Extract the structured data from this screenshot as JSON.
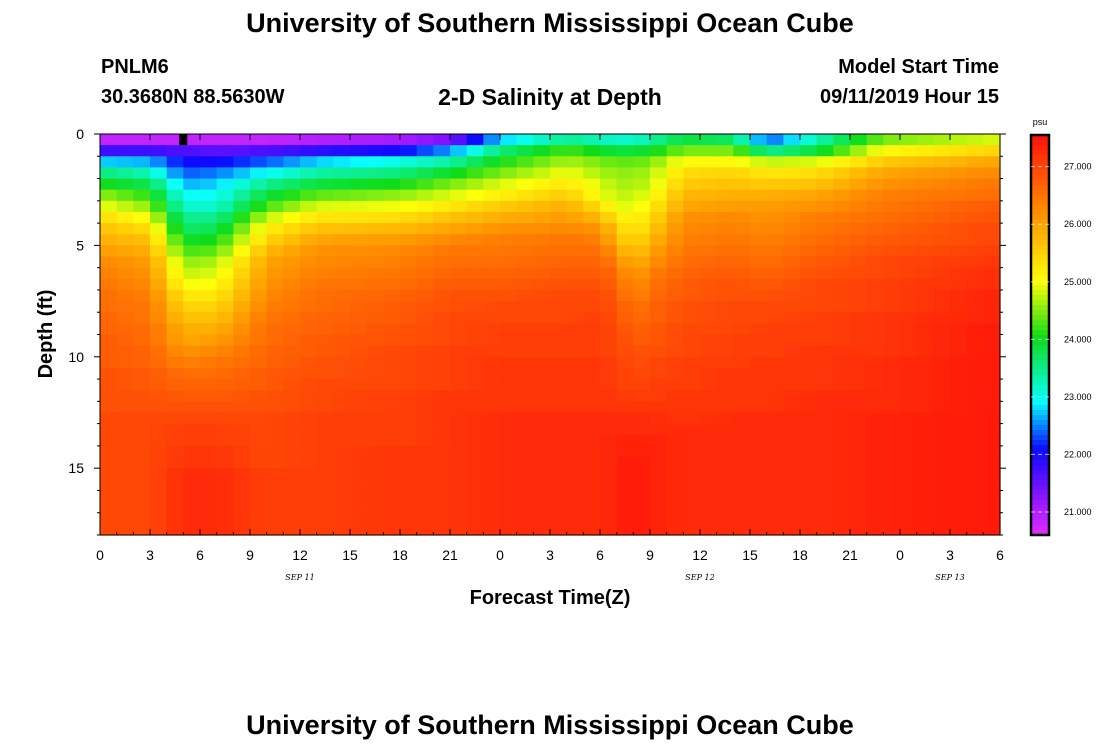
{
  "header": {
    "title_top": "University of Southern Mississippi Ocean Cube",
    "station_id": "PNLM6",
    "station_coords": "30.3680N 88.5630W",
    "plot_title": "2-D Salinity at Depth",
    "model_start_label": "Model Start Time",
    "model_start_value": "09/11/2019 Hour 15",
    "title_bottom": "University of Southern Mississippi Ocean Cube"
  },
  "chart_data": {
    "type": "heatmap",
    "title": "2-D Salinity at Depth",
    "xlabel": "Forecast Time(Z)",
    "ylabel": "Depth (ft)",
    "x_hours_from_sep11_00z": [
      0,
      54
    ],
    "x_tick_labels": [
      "0",
      "3",
      "6",
      "9",
      "12",
      "15",
      "18",
      "21",
      "0",
      "3",
      "6",
      "9",
      "12",
      "15",
      "18",
      "21",
      "0",
      "3",
      "6"
    ],
    "date_labels": [
      {
        "label": "SEP 11",
        "hour": 12
      },
      {
        "label": "SEP 12",
        "hour": 36
      },
      {
        "label": "SEP 13",
        "hour": 51
      }
    ],
    "ylim": [
      0,
      18
    ],
    "y_ticks": [
      0,
      5,
      10,
      15
    ],
    "y_tick_labels": [
      "0",
      "5",
      "10",
      "15"
    ],
    "depth_levels_ft": [
      0.25,
      0.75,
      1.25,
      1.75,
      2.25,
      2.75,
      3.25,
      3.75,
      4.25,
      4.75,
      5.25,
      5.75,
      6.25,
      6.75,
      7.25,
      7.75,
      8.25,
      8.75,
      9.25,
      9.75,
      10.25,
      10.75,
      11.25,
      11.75,
      12.25,
      12.75,
      13.25,
      13.75,
      14.25,
      14.75,
      15.25,
      15.75,
      16.25,
      16.75,
      17.25,
      17.75
    ],
    "salinity_profiles_psu": [
      {
        "hour": 0,
        "values": [
          20.9,
          21.8,
          22.8,
          23.6,
          24.1,
          24.6,
          25.0,
          25.4,
          25.7,
          25.9,
          26.1,
          26.3,
          26.4,
          26.5,
          26.6,
          26.6,
          26.7,
          26.7,
          26.8,
          26.8,
          26.8,
          26.9,
          26.9,
          26.9,
          26.9,
          27.0,
          27.0,
          27.0,
          27.0,
          27.0,
          27.0,
          27.0,
          27.0,
          27.0,
          27.0,
          27.0
        ]
      },
      {
        "hour": 3,
        "values": [
          20.9,
          21.8,
          22.7,
          23.3,
          23.8,
          24.2,
          24.6,
          25.0,
          25.4,
          25.7,
          25.9,
          26.1,
          26.2,
          26.3,
          26.4,
          26.5,
          26.5,
          26.6,
          26.6,
          26.7,
          26.7,
          26.8,
          26.8,
          26.9,
          26.9,
          27.0,
          27.0,
          27.0,
          27.0,
          27.0,
          27.0,
          27.0,
          27.0,
          27.0,
          27.0,
          27.0
        ]
      },
      {
        "hour": 5,
        "values": [
          20.9,
          21.7,
          22.1,
          22.4,
          22.7,
          23.0,
          23.2,
          23.5,
          23.7,
          24.0,
          24.3,
          24.6,
          24.8,
          25.0,
          25.3,
          25.5,
          25.7,
          25.9,
          26.0,
          26.2,
          26.4,
          26.6,
          26.7,
          26.8,
          26.9,
          27.0,
          27.1,
          27.1,
          27.2,
          27.2,
          27.3,
          27.3,
          27.3,
          27.3,
          27.3,
          27.3
        ]
      },
      {
        "hour": 7,
        "values": [
          20.9,
          21.6,
          22.1,
          22.5,
          22.8,
          23.0,
          23.2,
          23.5,
          23.8,
          24.1,
          24.4,
          24.7,
          24.9,
          25.1,
          25.3,
          25.5,
          25.7,
          25.9,
          26.1,
          26.3,
          26.5,
          26.6,
          26.7,
          26.8,
          26.9,
          27.0,
          27.1,
          27.1,
          27.2,
          27.2,
          27.3,
          27.3,
          27.3,
          27.3,
          27.3,
          27.3
        ]
      },
      {
        "hour": 10,
        "values": [
          20.9,
          21.7,
          22.4,
          23.0,
          23.5,
          23.9,
          24.3,
          24.8,
          25.2,
          25.5,
          25.8,
          26.0,
          26.1,
          26.2,
          26.3,
          26.4,
          26.5,
          26.6,
          26.6,
          26.7,
          26.7,
          26.8,
          26.8,
          26.9,
          26.9,
          27.0,
          27.0,
          27.0,
          27.0,
          27.0,
          27.1,
          27.1,
          27.1,
          27.1,
          27.1,
          27.1
        ]
      },
      {
        "hour": 13,
        "values": [
          21.0,
          21.9,
          22.8,
          23.4,
          23.9,
          24.4,
          24.9,
          25.3,
          25.7,
          26.0,
          26.2,
          26.3,
          26.4,
          26.5,
          26.6,
          26.6,
          26.7,
          26.7,
          26.8,
          26.8,
          26.9,
          26.9,
          27.0,
          27.0,
          27.0,
          27.1,
          27.1,
          27.1,
          27.1,
          27.1,
          27.1,
          27.1,
          27.1,
          27.1,
          27.1,
          27.1
        ]
      },
      {
        "hour": 18,
        "values": [
          21.1,
          22.1,
          23.1,
          23.6,
          24.1,
          24.6,
          25.0,
          25.4,
          25.8,
          26.1,
          26.3,
          26.4,
          26.5,
          26.6,
          26.7,
          26.8,
          26.8,
          26.9,
          26.9,
          27.0,
          27.0,
          27.0,
          27.0,
          27.1,
          27.1,
          27.1,
          27.1,
          27.1,
          27.2,
          27.2,
          27.2,
          27.2,
          27.2,
          27.2,
          27.2,
          27.2
        ]
      },
      {
        "hour": 21,
        "values": [
          21.4,
          22.6,
          23.4,
          24.0,
          24.5,
          24.9,
          25.3,
          25.7,
          26.0,
          26.3,
          26.5,
          26.6,
          26.7,
          26.8,
          26.9,
          26.9,
          27.0,
          27.0,
          27.0,
          27.1,
          27.1,
          27.1,
          27.1,
          27.2,
          27.2,
          27.2,
          27.2,
          27.2,
          27.2,
          27.2,
          27.2,
          27.2,
          27.2,
          27.2,
          27.2,
          27.2
        ]
      },
      {
        "hour": 24,
        "values": [
          22.8,
          23.6,
          24.1,
          24.5,
          24.9,
          25.2,
          25.6,
          25.9,
          26.2,
          26.4,
          26.5,
          26.6,
          26.7,
          26.8,
          26.9,
          27.0,
          27.0,
          27.1,
          27.1,
          27.1,
          27.2,
          27.2,
          27.2,
          27.2,
          27.2,
          27.3,
          27.3,
          27.3,
          27.3,
          27.3,
          27.3,
          27.3,
          27.3,
          27.3,
          27.3,
          27.3
        ]
      },
      {
        "hour": 28,
        "values": [
          23.5,
          24.3,
          24.7,
          25.0,
          25.3,
          25.6,
          25.9,
          26.1,
          26.3,
          26.5,
          26.6,
          26.7,
          26.8,
          26.9,
          27.0,
          27.0,
          27.0,
          27.1,
          27.1,
          27.1,
          27.2,
          27.2,
          27.2,
          27.2,
          27.2,
          27.3,
          27.3,
          27.3,
          27.3,
          27.3,
          27.3,
          27.3,
          27.3,
          27.3,
          27.3,
          27.3
        ]
      },
      {
        "hour": 30,
        "values": [
          23.3,
          24.0,
          24.5,
          24.7,
          24.9,
          25.0,
          25.4,
          25.8,
          26.2,
          26.4,
          26.6,
          26.7,
          26.8,
          26.9,
          27.0,
          27.0,
          27.1,
          27.1,
          27.1,
          27.1,
          27.2,
          27.2,
          27.2,
          27.2,
          27.2,
          27.3,
          27.3,
          27.3,
          27.3,
          27.3,
          27.3,
          27.3,
          27.3,
          27.3,
          27.3,
          27.3
        ]
      },
      {
        "hour": 31,
        "values": [
          23.2,
          23.9,
          24.4,
          24.6,
          24.7,
          24.8,
          25.0,
          25.3,
          25.6,
          25.8,
          26.1,
          26.4,
          26.6,
          26.7,
          26.8,
          26.9,
          26.9,
          27.0,
          27.0,
          27.0,
          27.1,
          27.1,
          27.1,
          27.2,
          27.2,
          27.3,
          27.3,
          27.4,
          27.4,
          27.4,
          27.4,
          27.4,
          27.4,
          27.4,
          27.4,
          27.4
        ]
      },
      {
        "hour": 32,
        "values": [
          23.2,
          23.9,
          24.4,
          24.6,
          24.7,
          24.8,
          24.9,
          25.1,
          25.2,
          25.4,
          25.6,
          25.8,
          26.0,
          26.2,
          26.3,
          26.5,
          26.6,
          26.7,
          26.8,
          26.9,
          26.9,
          27.0,
          27.0,
          27.1,
          27.2,
          27.3,
          27.3,
          27.4,
          27.4,
          27.5,
          27.5,
          27.5,
          27.5,
          27.5,
          27.5,
          27.5
        ]
      },
      {
        "hour": 33,
        "values": [
          23.4,
          24.0,
          24.5,
          24.7,
          24.8,
          25.0,
          25.2,
          25.4,
          25.6,
          25.8,
          26.0,
          26.2,
          26.4,
          26.5,
          26.6,
          26.7,
          26.7,
          26.8,
          26.8,
          26.9,
          27.0,
          27.0,
          27.1,
          27.1,
          27.2,
          27.3,
          27.3,
          27.4,
          27.4,
          27.4,
          27.4,
          27.4,
          27.4,
          27.4,
          27.4,
          27.4
        ]
      },
      {
        "hour": 35,
        "values": [
          23.9,
          24.5,
          25.1,
          25.4,
          25.6,
          25.8,
          26.0,
          26.2,
          26.3,
          26.4,
          26.5,
          26.6,
          26.7,
          26.8,
          26.8,
          26.9,
          26.9,
          27.0,
          27.0,
          27.0,
          27.1,
          27.1,
          27.1,
          27.2,
          27.2,
          27.2,
          27.3,
          27.3,
          27.3,
          27.3,
          27.3,
          27.3,
          27.3,
          27.3,
          27.3,
          27.3
        ]
      },
      {
        "hour": 38,
        "values": [
          23.7,
          24.5,
          25.1,
          25.5,
          25.7,
          25.9,
          26.1,
          26.3,
          26.4,
          26.5,
          26.6,
          26.7,
          26.8,
          26.9,
          26.9,
          27.0,
          27.0,
          27.0,
          27.1,
          27.1,
          27.1,
          27.2,
          27.2,
          27.2,
          27.2,
          27.3,
          27.3,
          27.3,
          27.3,
          27.3,
          27.3,
          27.3,
          27.3,
          27.3,
          27.3,
          27.3
        ]
      },
      {
        "hour": 40,
        "values": [
          22.4,
          23.5,
          24.8,
          25.3,
          25.6,
          25.9,
          26.1,
          26.2,
          26.3,
          26.4,
          26.5,
          26.6,
          26.7,
          26.8,
          26.9,
          27.0,
          27.0,
          27.1,
          27.1,
          27.1,
          27.2,
          27.2,
          27.2,
          27.2,
          27.2,
          27.3,
          27.3,
          27.3,
          27.3,
          27.3,
          27.3,
          27.3,
          27.3,
          27.3,
          27.3,
          27.3
        ]
      },
      {
        "hour": 43,
        "values": [
          23.3,
          23.9,
          24.9,
          25.4,
          25.7,
          26.0,
          26.2,
          26.4,
          26.5,
          26.6,
          26.7,
          26.8,
          26.9,
          27.0,
          27.0,
          27.0,
          27.1,
          27.1,
          27.1,
          27.2,
          27.2,
          27.2,
          27.2,
          27.3,
          27.3,
          27.3,
          27.3,
          27.3,
          27.3,
          27.3,
          27.3,
          27.3,
          27.3,
          27.3,
          27.3,
          27.3
        ]
      },
      {
        "hour": 47,
        "values": [
          24.5,
          25.1,
          25.6,
          26.0,
          26.2,
          26.4,
          26.5,
          26.6,
          26.7,
          26.8,
          26.9,
          27.0,
          27.0,
          27.1,
          27.1,
          27.1,
          27.2,
          27.2,
          27.2,
          27.2,
          27.3,
          27.3,
          27.3,
          27.3,
          27.3,
          27.4,
          27.4,
          27.4,
          27.4,
          27.4,
          27.4,
          27.4,
          27.4,
          27.4,
          27.4,
          27.4
        ]
      },
      {
        "hour": 54,
        "values": [
          24.9,
          25.5,
          26.0,
          26.3,
          26.5,
          26.6,
          26.8,
          26.9,
          27.0,
          27.0,
          27.1,
          27.2,
          27.3,
          27.3,
          27.4,
          27.4,
          27.4,
          27.5,
          27.5,
          27.5,
          27.5,
          27.5,
          27.5,
          27.5,
          27.5,
          27.5,
          27.5,
          27.5,
          27.5,
          27.5,
          27.5,
          27.5,
          27.5,
          27.5,
          27.5,
          27.5
        ]
      }
    ],
    "colorbar": {
      "label": "psu",
      "range": [
        20.6,
        27.55
      ],
      "ticks": [
        21.0,
        22.0,
        23.0,
        24.0,
        25.0,
        26.0,
        27.0
      ],
      "tick_labels": [
        "21.000",
        "22.000",
        "23.000",
        "24.000",
        "25.000",
        "26.000",
        "27.000"
      ]
    },
    "marker": {
      "hour": 5,
      "depth_ft": 0.25,
      "color": "#000000"
    }
  }
}
